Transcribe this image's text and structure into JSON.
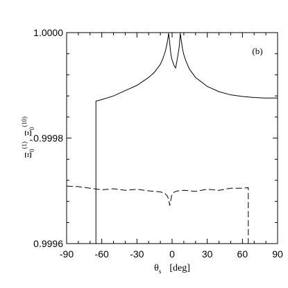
{
  "chart_data": {
    "type": "line",
    "annotation": "(b)",
    "xlabel": {
      "symbol": "θ",
      "subscript": "s",
      "unit": "[deg]"
    },
    "ylabel": {
      "symbol1": "Ξ",
      "sub1": "0",
      "sup1": "(1)",
      "sep": ",",
      "symbol2": "Ξ",
      "sub2": "0",
      "sup2": "(10)"
    },
    "xlim": [
      -90,
      90
    ],
    "ylim": [
      0.9996,
      1.0
    ],
    "xticks": [
      -90,
      -60,
      -30,
      0,
      30,
      60,
      90
    ],
    "xtick_labels": [
      "-90",
      "-60",
      "-30",
      "0",
      "30",
      "60",
      "90"
    ],
    "yticks": [
      0.9996,
      0.9998,
      1.0
    ],
    "ytick_labels": [
      "0.9996",
      "0.9998",
      "1.0000"
    ],
    "grid": false,
    "series": [
      {
        "style": "solid",
        "x": [
          -65,
          -65,
          -60,
          -50,
          -40,
          -30,
          -20,
          -15,
          -10,
          -8,
          -6,
          -5,
          -4,
          -3.5,
          -3,
          -2.5,
          -2,
          -1.5,
          -1,
          0,
          1,
          2,
          3,
          4,
          5,
          6,
          6.5,
          7,
          7.5,
          8,
          9,
          10,
          12,
          15,
          20,
          30,
          40,
          50,
          60,
          70,
          80,
          90
        ],
        "y": [
          0.9996,
          0.99987,
          0.999873,
          0.99988,
          0.99989,
          0.9999,
          0.999915,
          0.999925,
          0.99994,
          0.99995,
          0.999963,
          0.999972,
          0.999983,
          0.99999,
          0.999999,
          0.99999,
          0.99998,
          0.999968,
          0.999958,
          0.999948,
          0.999942,
          0.999936,
          0.999933,
          0.999945,
          0.999958,
          0.999972,
          0.999985,
          0.999999,
          0.99999,
          0.999982,
          0.999968,
          0.999958,
          0.999945,
          0.99993,
          0.999915,
          0.999898,
          0.999888,
          0.999882,
          0.999879,
          0.999877,
          0.999876,
          0.999876
        ]
      },
      {
        "style": "dashed",
        "x": [
          -90,
          -80,
          -70,
          -60,
          -50,
          -40,
          -30,
          -20,
          -10,
          -6,
          -4,
          -3,
          -2.5,
          -2,
          -1.5,
          -1,
          0,
          2,
          5,
          10,
          20,
          30,
          40,
          50,
          60,
          65,
          65
        ],
        "y": [
          0.999709,
          0.999708,
          0.999705,
          0.999702,
          0.999704,
          0.999701,
          0.999703,
          0.9997,
          0.999698,
          0.999695,
          0.99969,
          0.999684,
          0.999678,
          0.999672,
          0.999678,
          0.999684,
          0.999694,
          0.999698,
          0.9997,
          0.999701,
          0.999699,
          0.999703,
          0.999701,
          0.999705,
          0.999705,
          0.999706,
          0.9996
        ]
      }
    ]
  }
}
